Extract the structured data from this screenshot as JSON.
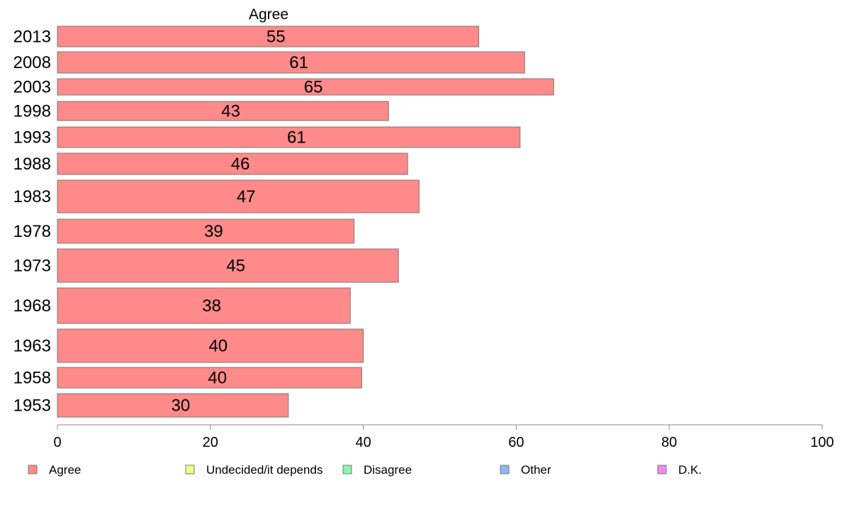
{
  "chart_data": {
    "type": "bar",
    "orientation": "horizontal",
    "header": "Agree",
    "categories": [
      "2013",
      "2008",
      "2003",
      "1998",
      "1993",
      "1988",
      "1983",
      "1978",
      "1973",
      "1968",
      "1963",
      "1958",
      "1953"
    ],
    "series": [
      {
        "name": "Agree",
        "values": [
          55,
          61,
          65,
          43,
          61,
          46,
          47,
          39,
          45,
          38,
          40,
          40,
          30
        ],
        "true_values": [
          55.1,
          61.1,
          64.9,
          43.3,
          60.5,
          45.8,
          47.3,
          38.8,
          44.6,
          38.3,
          40.0,
          39.8,
          30.2
        ]
      }
    ],
    "xlim": [
      0,
      100
    ],
    "xticks": [
      0,
      20,
      40,
      60,
      80,
      100
    ],
    "grid": false,
    "legend": {
      "placement": "bottom",
      "items": [
        {
          "label": "Agree",
          "color": "#ff8a8a"
        },
        {
          "label": "Undecided/it depends",
          "color": "#eeff8c"
        },
        {
          "label": "Disagree",
          "color": "#8cf5b0"
        },
        {
          "label": "Other",
          "color": "#8cb8f5"
        },
        {
          "label": "D.K.",
          "color": "#ec8cf0"
        }
      ]
    },
    "bar_color": "#ff8a8a"
  }
}
